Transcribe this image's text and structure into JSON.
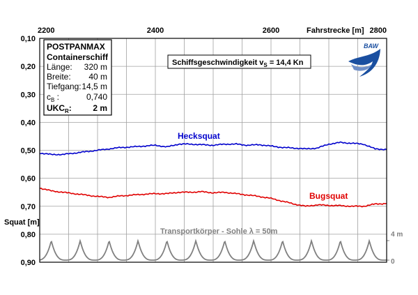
{
  "chart_data": {
    "type": "line",
    "x_axis": {
      "label": "Fahrstrecke [m]",
      "range": [
        2200,
        2800
      ],
      "ticks": [
        "2200",
        "2400",
        "2600",
        "2800"
      ],
      "position": "top",
      "grid": true,
      "minor_step": 50
    },
    "y_axis": {
      "label": "Squat [m]",
      "range": [
        0.1,
        0.9
      ],
      "inverted": true,
      "ticks": [
        "0,10",
        "0,20",
        "0,30",
        "0,40",
        "0,50",
        "0,60",
        "0,70",
        "0,80",
        "0,90"
      ],
      "grid": true
    },
    "series": [
      {
        "name": "Hecksquat",
        "color": "#0000cc",
        "x": [
          2200,
          2220,
          2240,
          2260,
          2280,
          2300,
          2320,
          2340,
          2360,
          2380,
          2400,
          2420,
          2440,
          2460,
          2480,
          2500,
          2520,
          2540,
          2560,
          2580,
          2600,
          2620,
          2640,
          2660,
          2680,
          2700,
          2720,
          2740,
          2760,
          2780,
          2800
        ],
        "values": [
          0.51,
          0.515,
          0.515,
          0.51,
          0.505,
          0.5,
          0.495,
          0.49,
          0.488,
          0.485,
          0.482,
          0.488,
          0.478,
          0.478,
          0.48,
          0.482,
          0.478,
          0.478,
          0.482,
          0.48,
          0.485,
          0.49,
          0.492,
          0.495,
          0.492,
          0.478,
          0.472,
          0.475,
          0.478,
          0.495,
          0.497
        ]
      },
      {
        "name": "Bugsquat",
        "color": "#e00000",
        "x": [
          2200,
          2220,
          2240,
          2260,
          2280,
          2300,
          2320,
          2340,
          2360,
          2380,
          2400,
          2420,
          2440,
          2460,
          2480,
          2500,
          2520,
          2540,
          2560,
          2580,
          2600,
          2620,
          2640,
          2660,
          2680,
          2700,
          2720,
          2740,
          2760,
          2780,
          2800
        ],
        "values": [
          0.635,
          0.645,
          0.65,
          0.655,
          0.66,
          0.665,
          0.668,
          0.663,
          0.66,
          0.657,
          0.655,
          0.655,
          0.65,
          0.65,
          0.648,
          0.652,
          0.65,
          0.655,
          0.66,
          0.665,
          0.672,
          0.682,
          0.692,
          0.7,
          0.695,
          0.697,
          0.698,
          0.7,
          0.7,
          0.692,
          0.69
        ]
      }
    ],
    "bed_profile": {
      "label": "Transportkörper - Sohle  λ = 50m",
      "wavelength_m": 50,
      "crest_offset_m": 20,
      "amplitude_labels": [
        "4 m",
        "0"
      ],
      "color": "#808080"
    },
    "annotations": {
      "speed": "Schiffsgeschwindigkeit v",
      "speed_sub": "S",
      "speed_value": " = 14,4 Kn"
    },
    "info_box": {
      "title": "POSTPANMAX",
      "subtitle": "Containerschiff",
      "rows": [
        {
          "key": "Länge:",
          "value": "320 m"
        },
        {
          "key": "Breite:",
          "value": "40 m"
        },
        {
          "key": "Tiefgang:",
          "value": "14,5 m"
        },
        {
          "key": "c",
          "key_sub": "B",
          "key_suffix": " :",
          "value": "0,740"
        }
      ],
      "ukc_key": "UKC",
      "ukc_sub": "R",
      "ukc_suffix": ":",
      "ukc_value": "2 m"
    },
    "logo": {
      "text": "BAW",
      "color": "#1a4fa0"
    }
  }
}
